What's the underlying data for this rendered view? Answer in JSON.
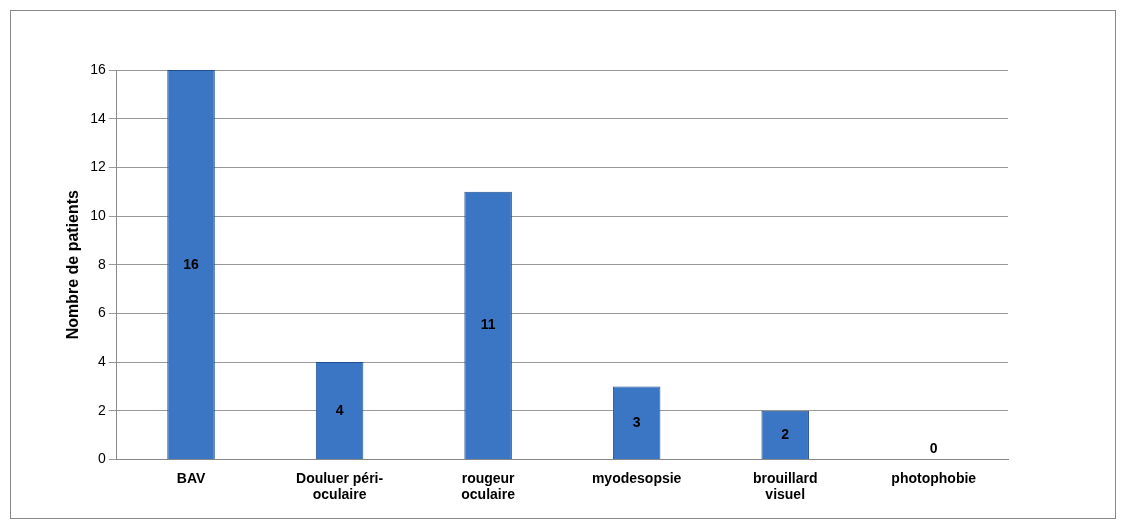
{
  "chart_data": {
    "type": "bar",
    "ylabel": "Nombre de patients",
    "categories": [
      "BAV",
      "Douluer péri-oculaire",
      "rougeur oculaire",
      "myodesopsie",
      "brouillard visuel",
      "photophobie"
    ],
    "values": [
      16,
      4,
      11,
      3,
      2,
      0
    ],
    "color": "#3a76c4",
    "ylim": [
      0,
      16
    ],
    "yticks": [
      0,
      2,
      4,
      6,
      8,
      10,
      12,
      14,
      16
    ],
    "grid": "y",
    "data_labels": true,
    "legend": false
  }
}
